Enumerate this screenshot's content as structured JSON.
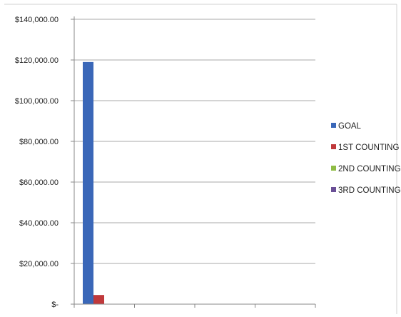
{
  "chart_data": {
    "type": "bar",
    "categories": [
      "",
      "",
      "",
      ""
    ],
    "series": [
      {
        "name": "GOAL",
        "color": "#3a67b8",
        "values": [
          119000,
          null,
          null,
          null
        ]
      },
      {
        "name": "1ST COUNTING",
        "color": "#c0393b",
        "values": [
          4500,
          null,
          null,
          null
        ]
      },
      {
        "name": "2ND COUNTING",
        "color": "#8fbc45",
        "values": [
          null,
          null,
          null,
          null
        ]
      },
      {
        "name": "3RD COUNTING",
        "color": "#6a4f96",
        "values": [
          null,
          null,
          null,
          null
        ]
      }
    ],
    "ylim": [
      0,
      140000
    ],
    "yticks": [
      0,
      20000,
      40000,
      60000,
      80000,
      100000,
      120000,
      140000
    ],
    "ytick_labels": [
      "$-",
      "$20,000.00",
      "$40,000.00",
      "$60,000.00",
      "$80,000.00",
      "$100,000.00",
      "$120,000.00",
      "$140,000.00"
    ],
    "grid": true,
    "legend_position": "right",
    "title": "",
    "xlabel": "",
    "ylabel": ""
  }
}
